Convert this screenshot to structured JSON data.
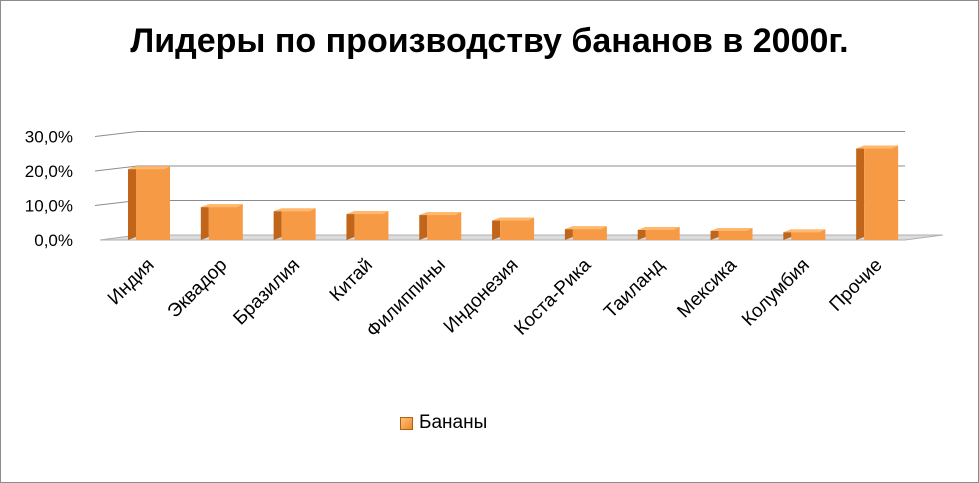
{
  "chart_data": {
    "type": "bar",
    "title": "Лидеры по производству бананов в 2000г.",
    "categories": [
      "Индия",
      "Эквадор",
      "Бразилия",
      "Китай",
      "Филиппины",
      "Индонезия",
      "Коста-Рика",
      "Таиланд",
      "Мексика",
      "Колумбия",
      "Прочие"
    ],
    "series": [
      {
        "name": "Бананы",
        "values": [
          20.5,
          9.5,
          8.3,
          7.5,
          7.2,
          5.6,
          3.1,
          2.9,
          2.6,
          2.2,
          26.5
        ]
      }
    ],
    "yticks": [
      "0,0%",
      "10,0%",
      "20,0%",
      "30,0%"
    ],
    "ylim": [
      0,
      30
    ],
    "xlabel": "",
    "ylabel": "",
    "grid": true,
    "legend_position": "bottom",
    "colors": {
      "bar_front": "#f79a46",
      "bar_side": "#c0651a",
      "bar_top": "#ffb96f",
      "grid": "#8c8c8c"
    }
  }
}
